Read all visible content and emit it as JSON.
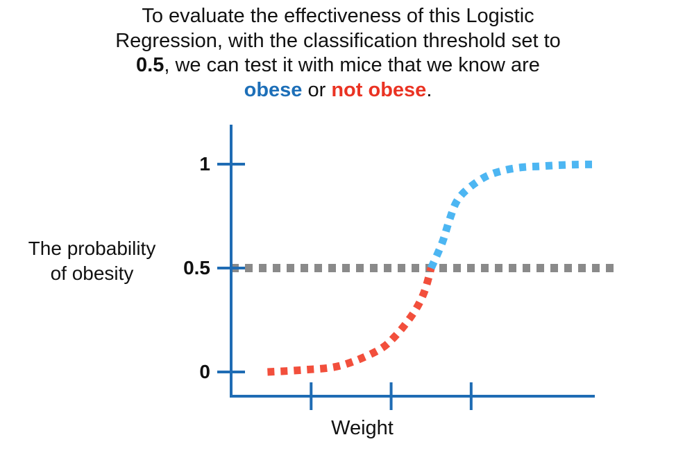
{
  "caption": {
    "line1": "To evaluate the effectiveness of this Logistic",
    "line2": "Regression, with the classification threshold set to",
    "threshold_bold": "0.5",
    "line3_rest": ", we can test it with mice that we know are",
    "obese_word": "obese",
    "or_word": " or ",
    "not_obese_word": "not obese",
    "end_period": "."
  },
  "colors": {
    "axis": "#1f6cb4",
    "obese_curve": "#4db6f2",
    "not_obese_curve": "#f24f3c",
    "threshold": "#8a8a8a",
    "obese_text": "#1d6fb8",
    "not_obese_text": "#ea3323"
  },
  "chart_data": {
    "type": "line",
    "xlabel": "Weight",
    "ylabel_line1": "The probability",
    "ylabel_line2": "of obesity",
    "yticks": [
      "0",
      "0.5",
      "1"
    ],
    "ytick_values": [
      0,
      0.5,
      1
    ],
    "ylim": [
      -0.1,
      1.15
    ],
    "xlim": [
      0,
      1
    ],
    "x_tick_values": [
      0.22,
      0.44,
      0.66
    ],
    "x_tick_labels": [
      "",
      "",
      ""
    ],
    "threshold": 0.5,
    "threshold_style": "dotted",
    "series": [
      {
        "x": [
          0.1,
          0.2,
          0.3,
          0.4,
          0.45,
          0.5,
          0.53,
          0.55,
          0.58,
          0.6,
          0.62,
          0.65,
          0.7,
          0.75,
          0.8,
          0.85,
          0.9,
          0.95,
          1.0
        ],
        "y": [
          0.0,
          0.01,
          0.03,
          0.1,
          0.17,
          0.28,
          0.38,
          0.5,
          0.62,
          0.73,
          0.82,
          0.88,
          0.94,
          0.97,
          0.985,
          0.99,
          0.995,
          0.998,
          0.999
        ]
      }
    ]
  }
}
